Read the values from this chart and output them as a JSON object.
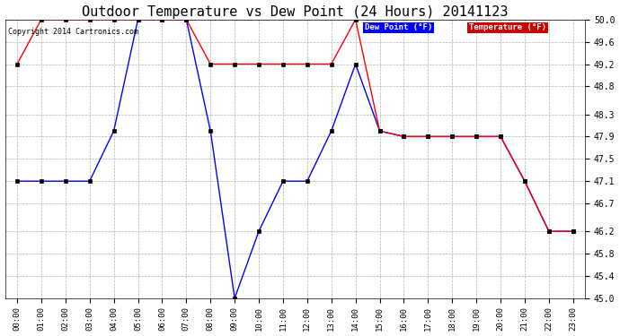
{
  "title": "Outdoor Temperature vs Dew Point (24 Hours) 20141123",
  "copyright": "Copyright 2014 Cartronics.com",
  "hours": [
    "00:00",
    "01:00",
    "02:00",
    "03:00",
    "04:00",
    "05:00",
    "06:00",
    "07:00",
    "08:00",
    "09:00",
    "10:00",
    "11:00",
    "12:00",
    "13:00",
    "14:00",
    "15:00",
    "16:00",
    "17:00",
    "18:00",
    "19:00",
    "20:00",
    "21:00",
    "22:00",
    "23:00"
  ],
  "temperature": [
    49.2,
    50.0,
    50.0,
    50.0,
    50.0,
    50.0,
    50.0,
    50.0,
    49.2,
    49.2,
    49.2,
    49.2,
    49.2,
    49.2,
    50.0,
    48.0,
    47.9,
    47.9,
    47.9,
    47.9,
    47.9,
    47.1,
    46.2,
    46.2
  ],
  "dew_point": [
    47.1,
    47.1,
    47.1,
    47.1,
    48.0,
    50.0,
    50.0,
    50.0,
    48.0,
    45.0,
    46.2,
    47.1,
    47.1,
    48.0,
    49.2,
    48.0,
    47.9,
    47.9,
    47.9,
    47.9,
    47.9,
    47.1,
    46.2,
    46.2
  ],
  "ylim": [
    45.0,
    50.0
  ],
  "yticks": [
    45.0,
    45.4,
    45.8,
    46.2,
    46.7,
    47.1,
    47.5,
    47.9,
    48.3,
    48.8,
    49.2,
    49.6,
    50.0
  ],
  "temp_color": "#ff0000",
  "dew_color": "#0000ff",
  "bg_color": "#ffffff",
  "grid_color": "#b0b0b0",
  "title_fontsize": 11,
  "legend_dew_bg": "#0000ff",
  "legend_temp_bg": "#cc0000"
}
